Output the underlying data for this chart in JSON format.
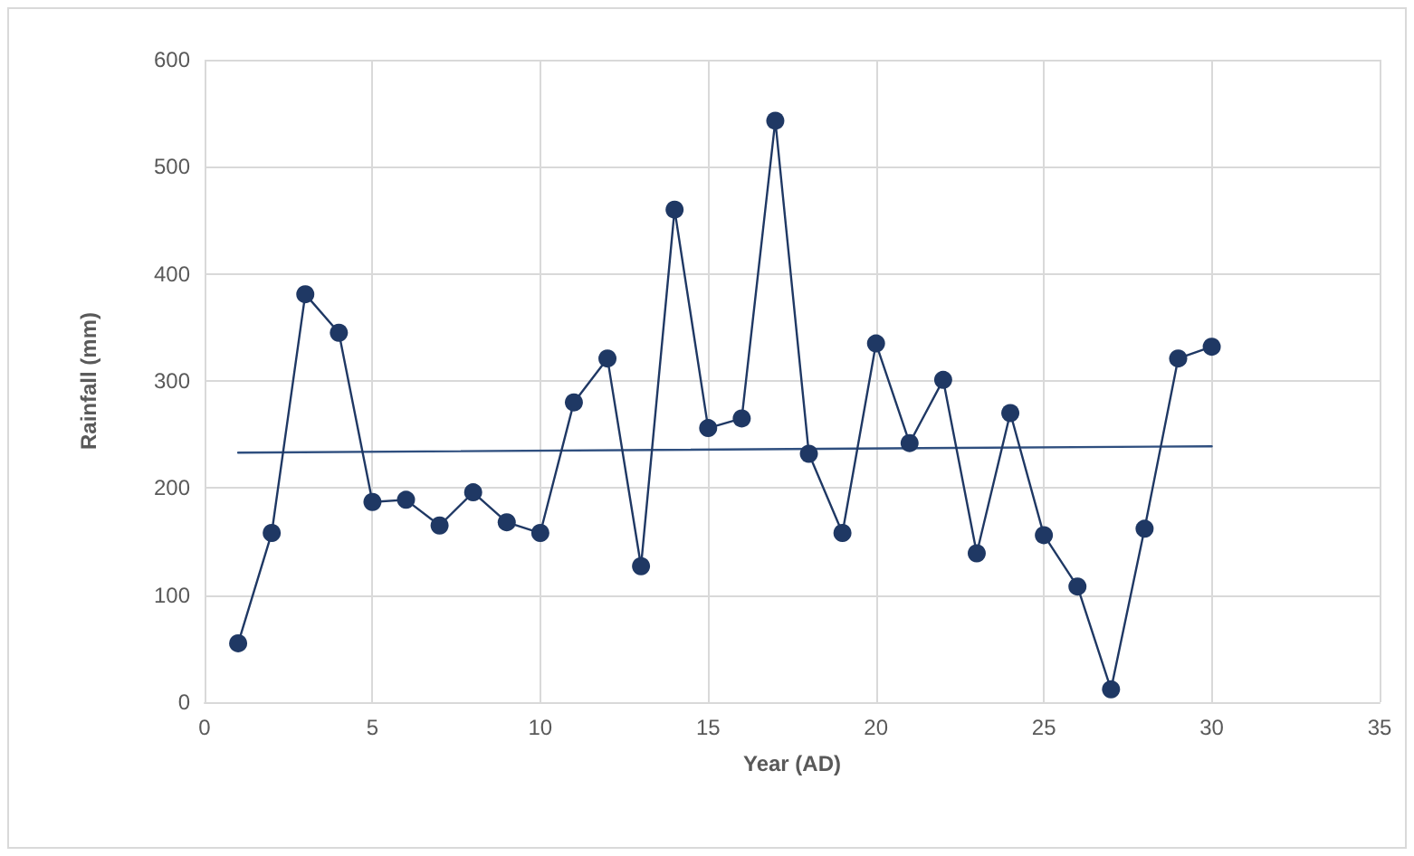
{
  "chart_data": {
    "type": "line",
    "xlabel": "Year (AD)",
    "ylabel": "Rainfall (mm)",
    "xlim": [
      0,
      35
    ],
    "xticks": [
      0,
      5,
      10,
      15,
      20,
      25,
      30,
      35
    ],
    "ylim": [
      0,
      600
    ],
    "yticks": [
      0,
      100,
      200,
      300,
      400,
      500,
      600
    ],
    "grid": true,
    "marker": "circle",
    "line_style": "solid",
    "series": [
      {
        "color": "#1f3864",
        "x": [
          1,
          2,
          3,
          4,
          5,
          6,
          7,
          8,
          9,
          10,
          11,
          12,
          13,
          14,
          15,
          16,
          17,
          18,
          19,
          20,
          21,
          22,
          23,
          24,
          25,
          26,
          27,
          28,
          29,
          30
        ],
        "values": [
          55,
          158,
          381,
          345,
          187,
          189,
          165,
          196,
          168,
          158,
          280,
          321,
          127,
          460,
          256,
          265,
          543,
          232,
          158,
          335,
          242,
          301,
          139,
          270,
          156,
          108,
          12,
          162,
          321,
          332
        ]
      },
      {
        "type": "line",
        "marker": "none",
        "color": "#2f4f7f",
        "x": [
          1,
          30
        ],
        "values": [
          233,
          239
        ]
      }
    ]
  }
}
